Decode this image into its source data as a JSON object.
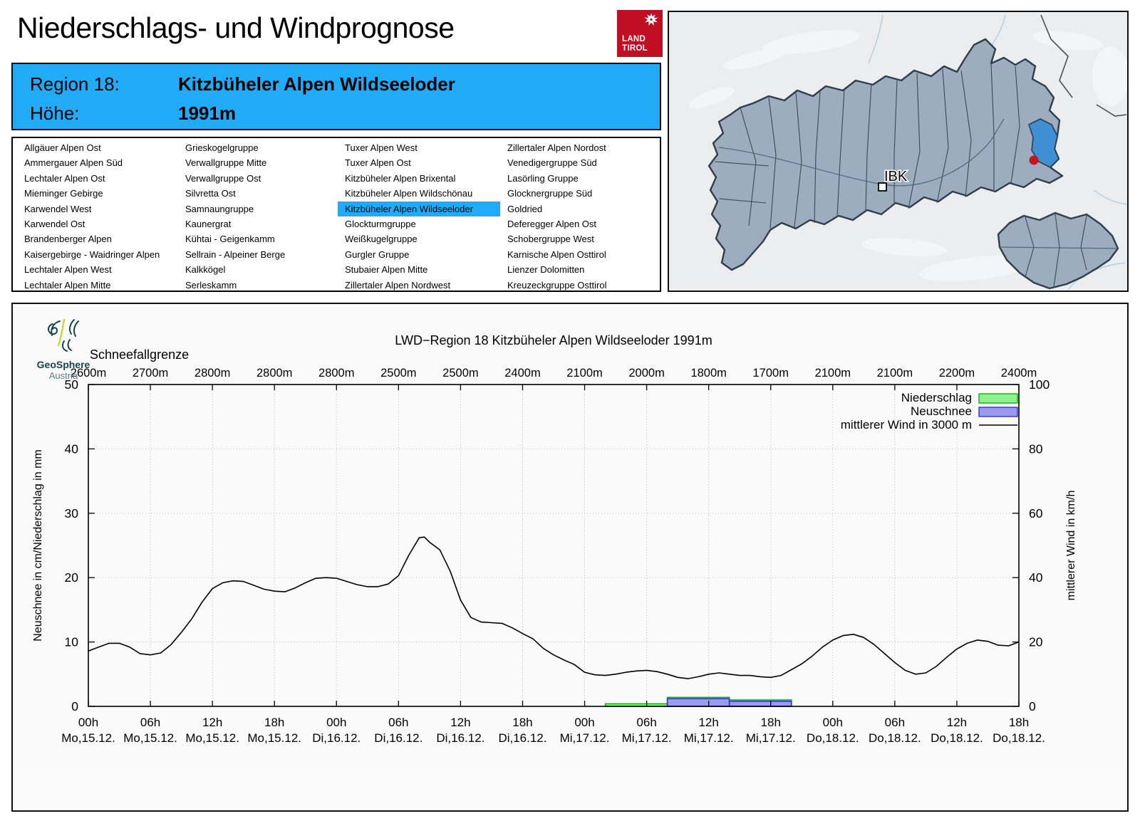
{
  "header": {
    "title": "Niederschlags- und Windprognose"
  },
  "land_tirol_logo": {
    "line1": "LAND",
    "line2": "TIROL",
    "color": "#c00e23"
  },
  "region_header": {
    "region_label": "Region 18:",
    "region_name": "Kitzbüheler Alpen Wildseeloder",
    "altitude_label": "Höhe:",
    "altitude_value": "1991m",
    "bg_color": "#21abf6"
  },
  "region_list": {
    "selected": "Kitzbüheler Alpen Wildseeloder",
    "highlight_color": "#21abf6",
    "columns": [
      [
        "Allgäuer Alpen Ost",
        "Ammergauer Alpen Süd",
        "Lechtaler Alpen Ost",
        "Mieminger Gebirge",
        "Karwendel West",
        "Karwendel Ost",
        "Brandenberger Alpen",
        "Kaisergebirge - Waidringer Alpen",
        "Lechtaler Alpen West",
        "Lechtaler Alpen Mitte"
      ],
      [
        "Grieskogelgruppe",
        "Verwallgruppe Mitte",
        "Verwallgruppe Ost",
        "Silvretta Ost",
        "Samnaungruppe",
        "Kaunergrat",
        "Kühtai - Geigenkamm",
        "Sellrain - Alpeiner Berge",
        "Kalkkögel",
        "Serleskamm"
      ],
      [
        "Tuxer Alpen West",
        "Tuxer Alpen Ost",
        "Kitzbüheler Alpen Brixental",
        "Kitzbüheler Alpen Wildschönau",
        "Kitzbüheler Alpen Wildseeloder",
        "Glockturmgruppe",
        "Weißkugelgruppe",
        "Gurgler Gruppe",
        "Stubaier Alpen Mitte",
        "Zillertaler Alpen Nordwest"
      ],
      [
        "Zillertaler Alpen Nordost",
        "Venedigergruppe Süd",
        "Lasörling Gruppe",
        "Glocknergruppe Süd",
        "Goldried",
        "Deferegger Alpen Ost",
        "Schobergruppe West",
        "Karnische Alpen Osttirol",
        "Lienzer Dolomitten",
        "Kreuzeckgruppe Osttirol"
      ]
    ]
  },
  "map": {
    "city_label": "IBK",
    "region_fill": "#9dadbf",
    "highlight_color": "#3f90d2",
    "marker_color": "#c51422"
  },
  "geosphere": {
    "name": "GeoSphere",
    "country": "Austria"
  },
  "chart_data": {
    "type": "line",
    "title": "LWD−Region 18 Kitzbüheler Alpen Wildseeloder 1991m",
    "snowline_label": "Schneefallgrenze",
    "snowline_values_m": [
      "2600m",
      "2700m",
      "2800m",
      "2800m",
      "2800m",
      "2500m",
      "2500m",
      "2400m",
      "2100m",
      "2000m",
      "1800m",
      "1700m",
      "2100m",
      "2100m",
      "2200m",
      "2400m"
    ],
    "ylabel_left": "Neuschnee in cm/Niederschlag in mm",
    "ylabel_right": "mittlerer Wind in km/h",
    "ylim_left": [
      0,
      50
    ],
    "ylim_right": [
      0,
      100
    ],
    "yticks_left": [
      0,
      10,
      20,
      30,
      40,
      50
    ],
    "yticks_right": [
      0,
      20,
      40,
      60,
      80,
      100
    ],
    "grid": true,
    "legend_position": "top-right",
    "x_tick_hours": [
      0,
      6,
      12,
      18,
      24,
      30,
      36,
      42,
      48,
      54,
      60,
      66,
      72,
      78,
      84,
      90
    ],
    "x_tick_labels_hour": [
      "00h",
      "06h",
      "12h",
      "18h",
      "00h",
      "06h",
      "12h",
      "18h",
      "00h",
      "06h",
      "12h",
      "18h",
      "00h",
      "06h",
      "12h",
      "18h"
    ],
    "x_tick_labels_date": [
      "Mo,15.12.",
      "Mo,15.12.",
      "Mo,15.12.",
      "Mo,15.12.",
      "Di,16.12.",
      "Di,16.12.",
      "Di,16.12.",
      "Di,16.12.",
      "Mi,17.12.",
      "Mi,17.12.",
      "Mi,17.12.",
      "Mi,17.12.",
      "Do,18.12.",
      "Do,18.12.",
      "Do,18.12.",
      "Do,18.12."
    ],
    "legend": [
      {
        "label": "Niederschlag",
        "type": "box",
        "fill": "#90ee90",
        "border": "#12b212"
      },
      {
        "label": "Neuschnee",
        "type": "box",
        "fill": "#9a9aef",
        "border": "#3434cf"
      },
      {
        "label": "mittlerer Wind in 3000 m",
        "type": "line",
        "color": "#000000"
      }
    ],
    "series": [
      {
        "name": "mittlerer Wind in 3000 m",
        "axis": "right",
        "unit": "km/h",
        "points_hour_kmh": [
          [
            0,
            17.2
          ],
          [
            1,
            18.4
          ],
          [
            2,
            19.6
          ],
          [
            3,
            19.6
          ],
          [
            4,
            18.4
          ],
          [
            5,
            16.4
          ],
          [
            6,
            16.0
          ],
          [
            7,
            16.6
          ],
          [
            8,
            19.2
          ],
          [
            9,
            23.0
          ],
          [
            10,
            27.2
          ],
          [
            11,
            32.4
          ],
          [
            12,
            36.6
          ],
          [
            13,
            38.4
          ],
          [
            14,
            39.0
          ],
          [
            15,
            38.8
          ],
          [
            16,
            37.6
          ],
          [
            17,
            36.4
          ],
          [
            18,
            35.8
          ],
          [
            19,
            35.6
          ],
          [
            20,
            36.8
          ],
          [
            21,
            38.4
          ],
          [
            22,
            39.8
          ],
          [
            23,
            40.0
          ],
          [
            24,
            39.8
          ],
          [
            25,
            38.8
          ],
          [
            26,
            37.8
          ],
          [
            27,
            37.2
          ],
          [
            28,
            37.2
          ],
          [
            29,
            38.0
          ],
          [
            30,
            40.6
          ],
          [
            31,
            47.0
          ],
          [
            32,
            52.4
          ],
          [
            32.5,
            52.6
          ],
          [
            33,
            51.0
          ],
          [
            34,
            48.6
          ],
          [
            35,
            42.0
          ],
          [
            36,
            33.0
          ],
          [
            37,
            27.6
          ],
          [
            38,
            26.2
          ],
          [
            39,
            26.0
          ],
          [
            40,
            25.8
          ],
          [
            41,
            24.4
          ],
          [
            42,
            22.6
          ],
          [
            43,
            21.0
          ],
          [
            44,
            18.0
          ],
          [
            45,
            16.0
          ],
          [
            46,
            14.4
          ],
          [
            47,
            13.0
          ],
          [
            48,
            10.6
          ],
          [
            49,
            9.8
          ],
          [
            50,
            9.6
          ],
          [
            51,
            10.0
          ],
          [
            52,
            10.6
          ],
          [
            53,
            11.0
          ],
          [
            54,
            11.2
          ],
          [
            55,
            10.8
          ],
          [
            56,
            10.0
          ],
          [
            57,
            9.0
          ],
          [
            58,
            8.6
          ],
          [
            59,
            9.2
          ],
          [
            60,
            10.0
          ],
          [
            61,
            10.4
          ],
          [
            62,
            10.0
          ],
          [
            63,
            9.6
          ],
          [
            64,
            9.6
          ],
          [
            65,
            9.2
          ],
          [
            66,
            9.0
          ],
          [
            67,
            9.6
          ],
          [
            68,
            11.4
          ],
          [
            69,
            13.2
          ],
          [
            70,
            15.6
          ],
          [
            71,
            18.4
          ],
          [
            72,
            20.6
          ],
          [
            73,
            22.0
          ],
          [
            74,
            22.4
          ],
          [
            75,
            21.4
          ],
          [
            76,
            19.2
          ],
          [
            77,
            16.4
          ],
          [
            78,
            13.6
          ],
          [
            79,
            11.2
          ],
          [
            80,
            10.0
          ],
          [
            81,
            10.4
          ],
          [
            82,
            12.4
          ],
          [
            83,
            15.2
          ],
          [
            84,
            17.8
          ],
          [
            85,
            19.6
          ],
          [
            86,
            20.6
          ],
          [
            87,
            20.2
          ],
          [
            88,
            19.0
          ],
          [
            89,
            18.8
          ],
          [
            90,
            20.0
          ]
        ]
      },
      {
        "name": "Niederschlag",
        "axis": "left",
        "unit": "mm",
        "bars": [
          {
            "from_h": 50,
            "to_h": 56,
            "value": 0.4
          },
          {
            "from_h": 56,
            "to_h": 62,
            "value": 1.4
          },
          {
            "from_h": 62,
            "to_h": 68,
            "value": 1.0
          }
        ]
      },
      {
        "name": "Neuschnee",
        "axis": "left",
        "unit": "cm",
        "bars": [
          {
            "from_h": 56,
            "to_h": 62,
            "value": 1.2
          },
          {
            "from_h": 62,
            "to_h": 68,
            "value": 0.8
          }
        ]
      }
    ]
  }
}
